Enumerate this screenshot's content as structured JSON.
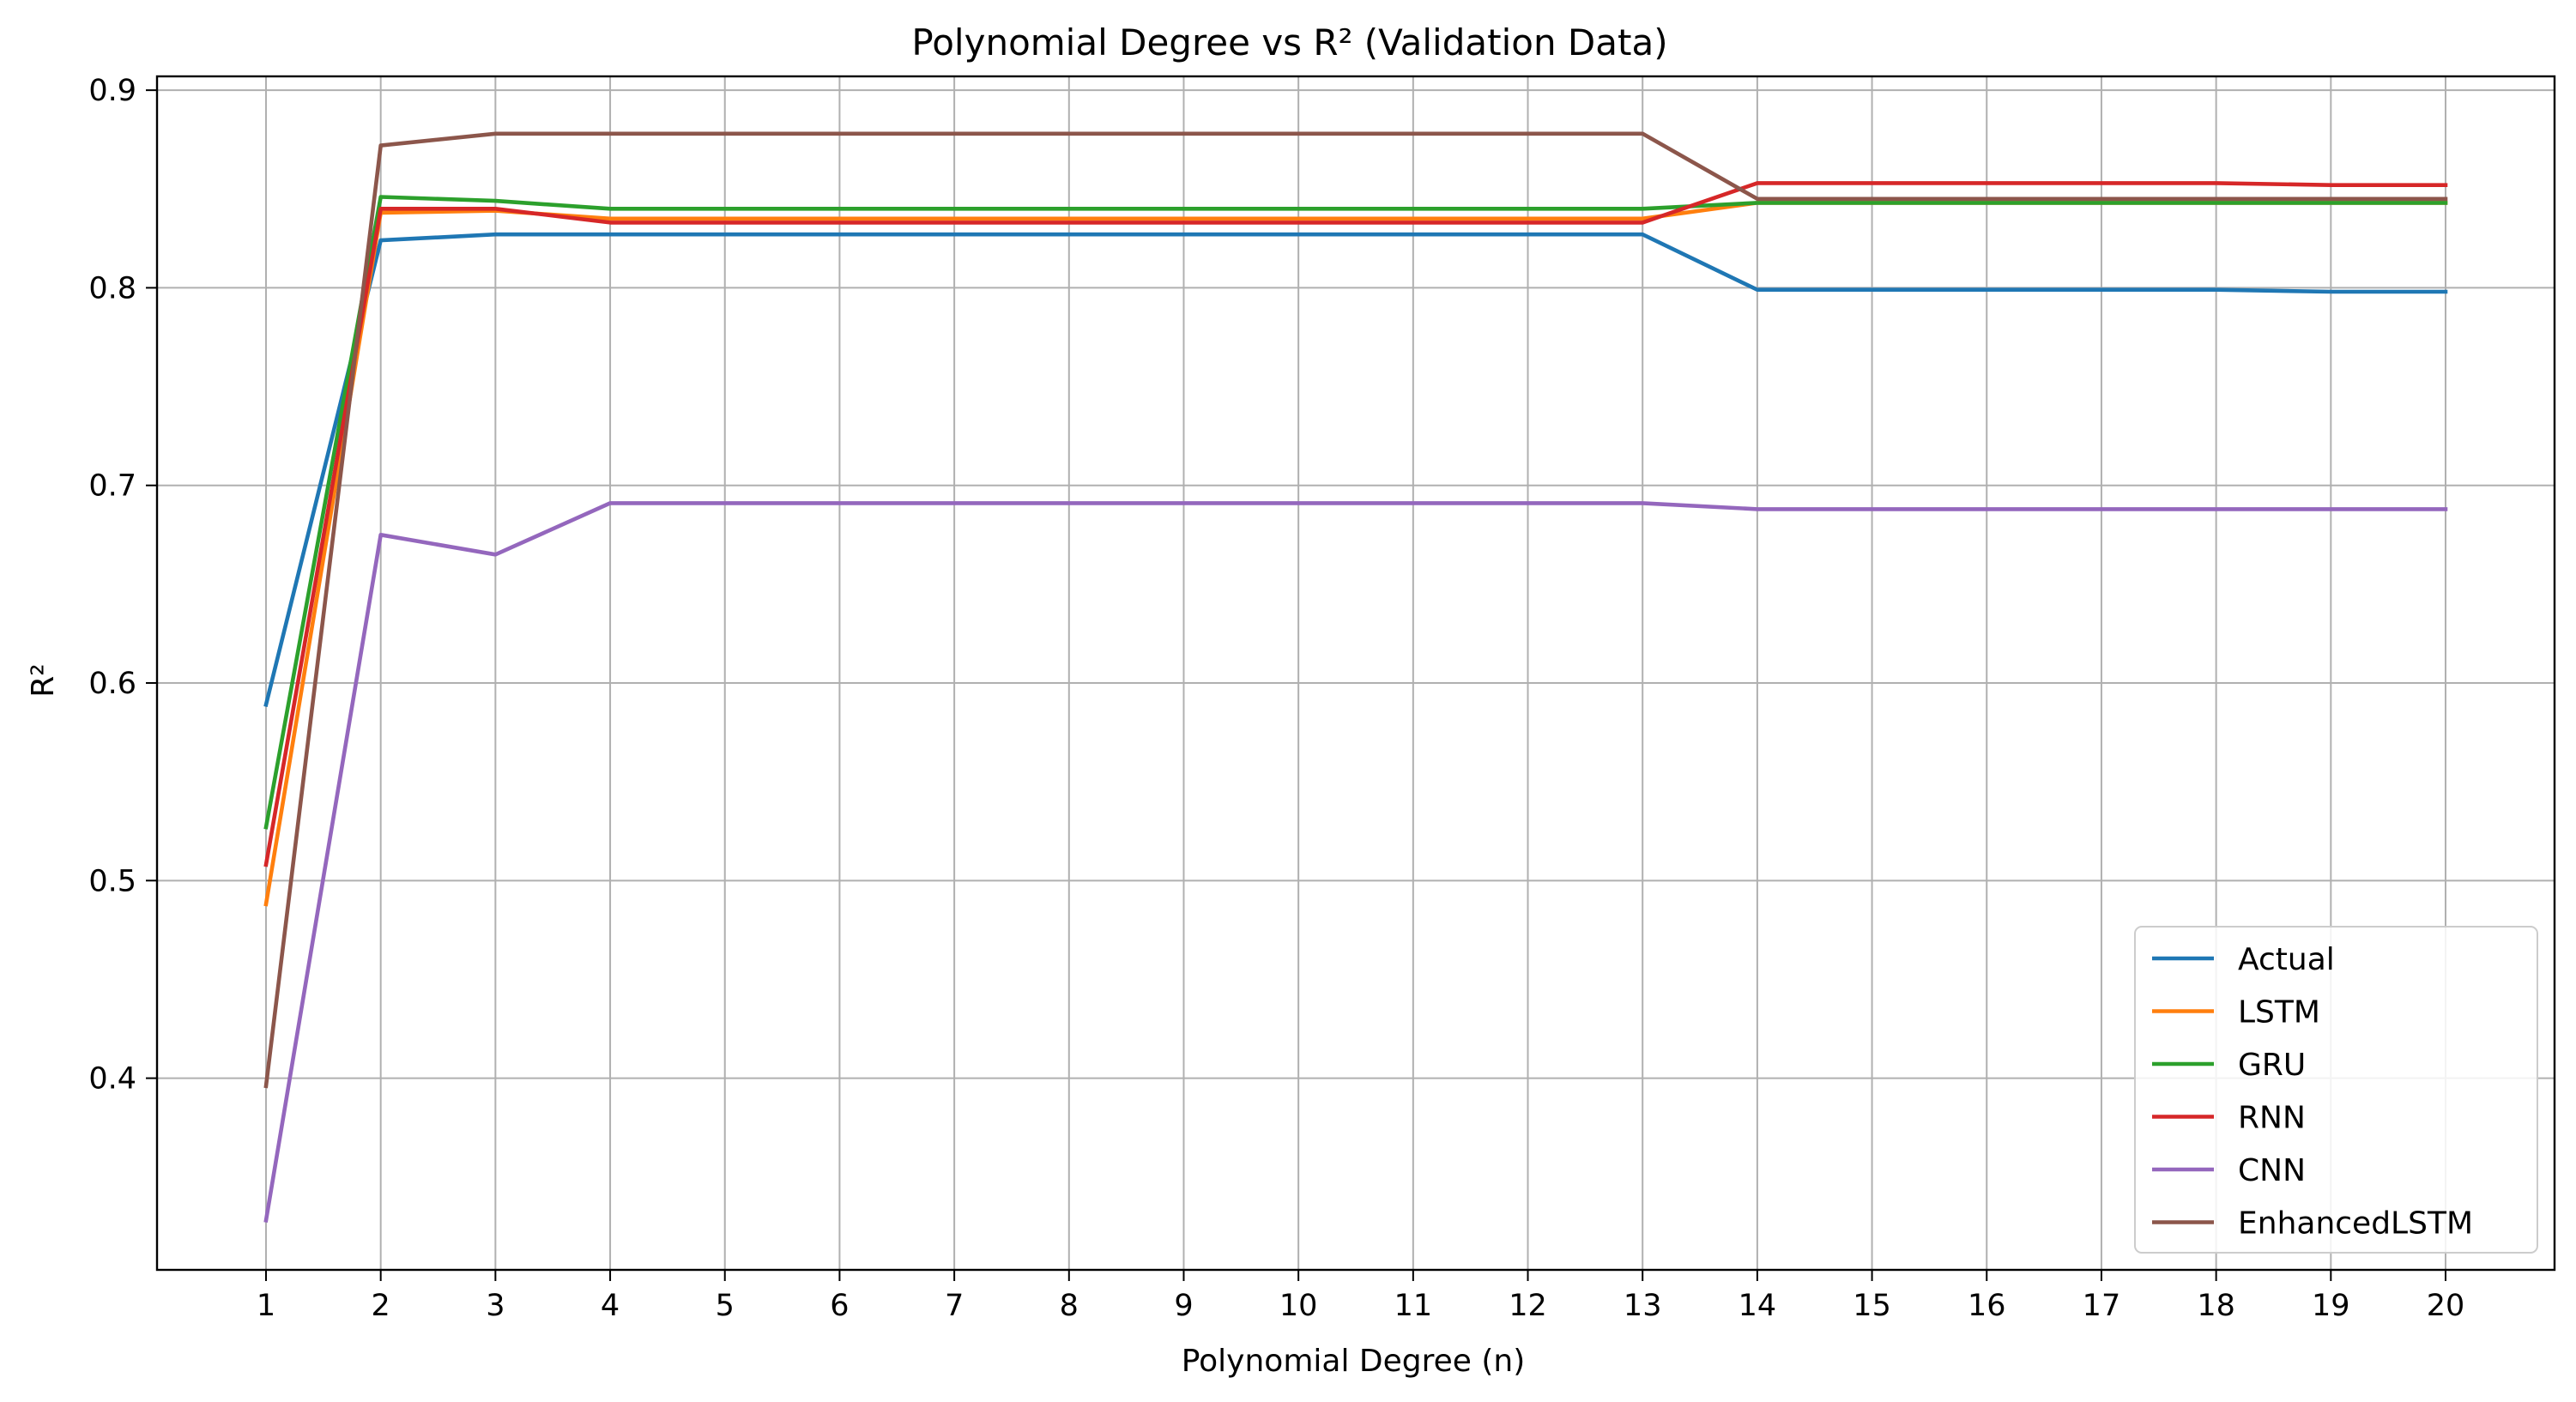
{
  "chart_data": {
    "type": "line",
    "title": "Polynomial Degree vs R² (Validation Data)",
    "xlabel": "Polynomial Degree (n)",
    "ylabel": "R²",
    "x": [
      1,
      2,
      3,
      4,
      5,
      6,
      7,
      8,
      9,
      10,
      11,
      12,
      13,
      14,
      15,
      16,
      17,
      18,
      19,
      20
    ],
    "xlim": [
      0.05,
      20.95
    ],
    "ylim": [
      0.303,
      0.907
    ],
    "x_ticks": [
      "1",
      "2",
      "3",
      "4",
      "5",
      "6",
      "7",
      "8",
      "9",
      "10",
      "11",
      "12",
      "13",
      "14",
      "15",
      "16",
      "17",
      "18",
      "19",
      "20"
    ],
    "y_ticks": [
      0.4,
      0.5,
      0.6,
      0.7,
      0.8,
      0.9
    ],
    "y_tick_labels": [
      "0.4",
      "0.5",
      "0.6",
      "0.7",
      "0.8",
      "0.9"
    ],
    "grid": true,
    "legend_position": "lower-right",
    "series": [
      {
        "name": "Actual",
        "color": "#1f77b4",
        "values": [
          0.589,
          0.824,
          0.827,
          0.827,
          0.827,
          0.827,
          0.827,
          0.827,
          0.827,
          0.827,
          0.827,
          0.827,
          0.827,
          0.799,
          0.799,
          0.799,
          0.799,
          0.799,
          0.798,
          0.798
        ]
      },
      {
        "name": "LSTM",
        "color": "#ff7f0e",
        "values": [
          0.488,
          0.838,
          0.839,
          0.835,
          0.835,
          0.835,
          0.835,
          0.835,
          0.835,
          0.835,
          0.835,
          0.835,
          0.835,
          0.843,
          0.843,
          0.843,
          0.843,
          0.843,
          0.843,
          0.843
        ]
      },
      {
        "name": "GRU",
        "color": "#2ca02c",
        "values": [
          0.527,
          0.846,
          0.844,
          0.84,
          0.84,
          0.84,
          0.84,
          0.84,
          0.84,
          0.84,
          0.84,
          0.84,
          0.84,
          0.843,
          0.843,
          0.843,
          0.843,
          0.843,
          0.843,
          0.843
        ]
      },
      {
        "name": "RNN",
        "color": "#d62728",
        "values": [
          0.508,
          0.84,
          0.84,
          0.833,
          0.833,
          0.833,
          0.833,
          0.833,
          0.833,
          0.833,
          0.833,
          0.833,
          0.833,
          0.853,
          0.853,
          0.853,
          0.853,
          0.853,
          0.852,
          0.852
        ]
      },
      {
        "name": "CNN",
        "color": "#9467bd",
        "values": [
          0.328,
          0.675,
          0.665,
          0.691,
          0.691,
          0.691,
          0.691,
          0.691,
          0.691,
          0.691,
          0.691,
          0.691,
          0.691,
          0.688,
          0.688,
          0.688,
          0.688,
          0.688,
          0.688,
          0.688
        ]
      },
      {
        "name": "EnhancedLSTM",
        "color": "#8c564b",
        "values": [
          0.396,
          0.872,
          0.878,
          0.878,
          0.878,
          0.878,
          0.878,
          0.878,
          0.878,
          0.878,
          0.878,
          0.878,
          0.878,
          0.845,
          0.845,
          0.845,
          0.845,
          0.845,
          0.845,
          0.845
        ]
      }
    ]
  }
}
